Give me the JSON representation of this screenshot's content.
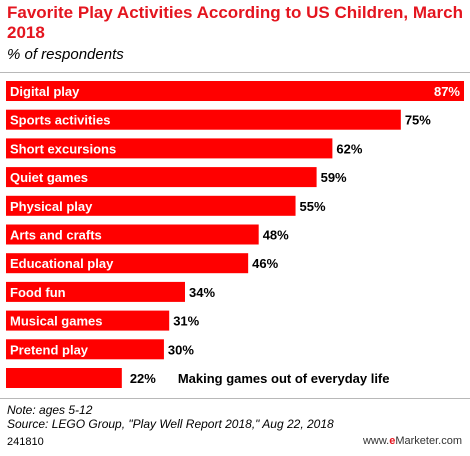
{
  "chart_data": {
    "type": "bar",
    "orientation": "horizontal",
    "title": "Favorite Play Activities According to US Children, March 2018",
    "subtitle": "% of respondents",
    "categories": [
      "Digital play",
      "Sports activities",
      "Short excursions",
      "Quiet games",
      "Physical play",
      "Arts and crafts",
      "Educational play",
      "Food fun",
      "Musical games",
      "Pretend play",
      "Making games out of everyday life"
    ],
    "values": [
      87,
      75,
      62,
      59,
      55,
      48,
      46,
      34,
      31,
      30,
      22
    ],
    "value_labels": [
      "87%",
      "75%",
      "62%",
      "59%",
      "55%",
      "48%",
      "46%",
      "34%",
      "31%",
      "30%",
      "22%"
    ],
    "xlim": [
      0,
      87
    ],
    "grid": false,
    "legend": "none",
    "bar_color": "#ff0000"
  },
  "footer": {
    "note": "Note: ages 5-12",
    "source": "Source: LEGO Group, \"Play Well Report 2018,\" Aug 22, 2018",
    "chart_id": "241810",
    "brand_prefix": "www.",
    "brand_e": "e",
    "brand_rest": "Marketer.com"
  },
  "colors": {
    "title": "#e4151f",
    "bar": "#ff0000"
  }
}
